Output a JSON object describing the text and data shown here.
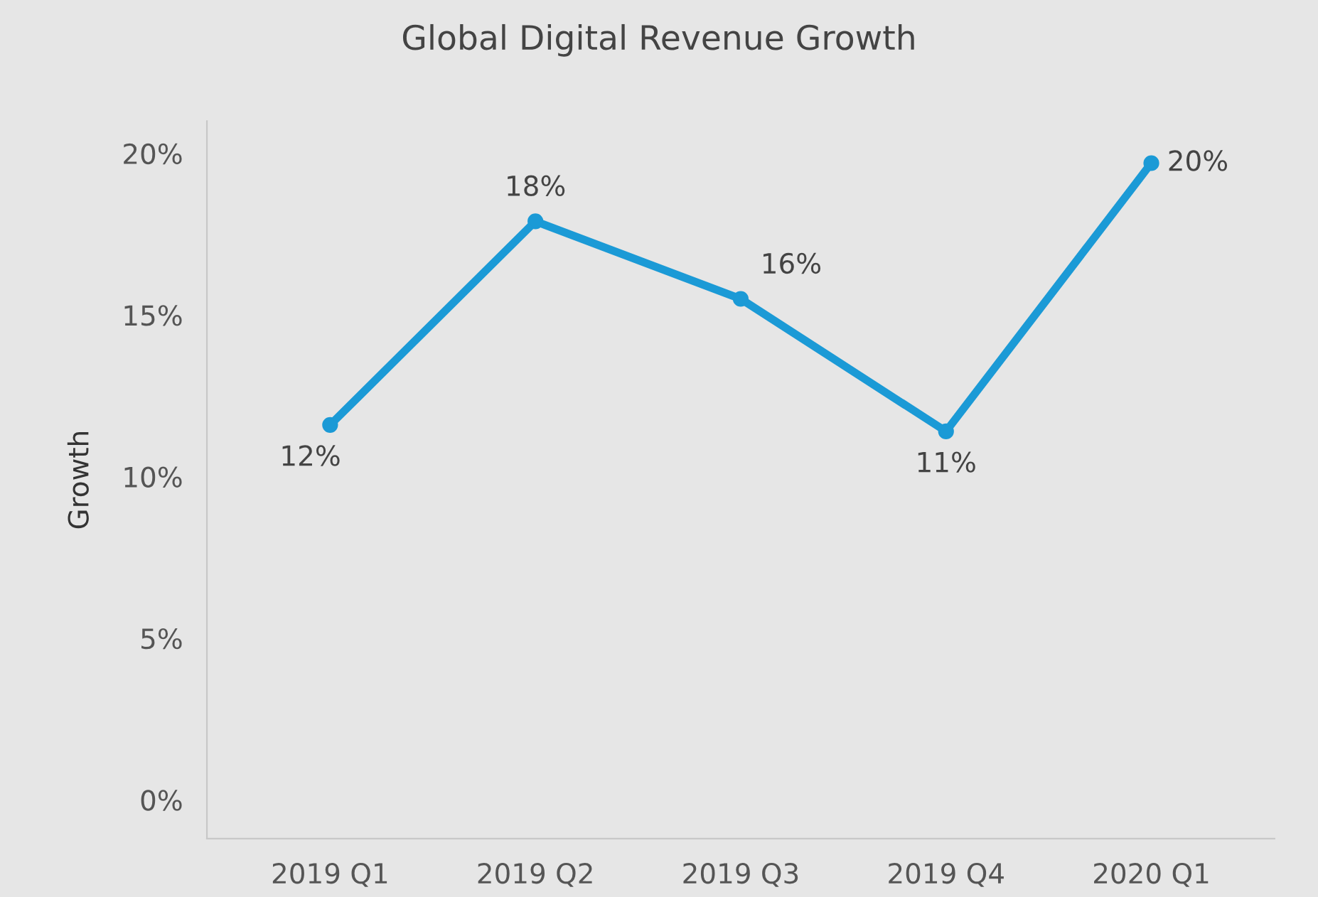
{
  "chart_data": {
    "type": "line",
    "title": "Global Digital Revenue Growth",
    "ylabel": "Growth",
    "categories": [
      "2019 Q1",
      "2019 Q2",
      "2019 Q3",
      "2019 Q4",
      "2020 Q1"
    ],
    "series": [
      {
        "color": "#1b9ad6",
        "values": [
          11.6,
          17.9,
          15.5,
          11.4,
          19.7
        ],
        "value_labels": [
          "12%",
          "18%",
          "16%",
          "11%",
          "20%"
        ]
      }
    ],
    "ylim": [
      -1.2,
      21
    ],
    "yticks": [
      {
        "value": 0,
        "label": "0%"
      },
      {
        "value": 5,
        "label": "5%"
      },
      {
        "value": 10,
        "label": "10%"
      },
      {
        "value": 15,
        "label": "15%"
      },
      {
        "value": 20,
        "label": "20%"
      }
    ],
    "grid": false,
    "legend": false,
    "marker": "circle",
    "line_style": "solid"
  }
}
